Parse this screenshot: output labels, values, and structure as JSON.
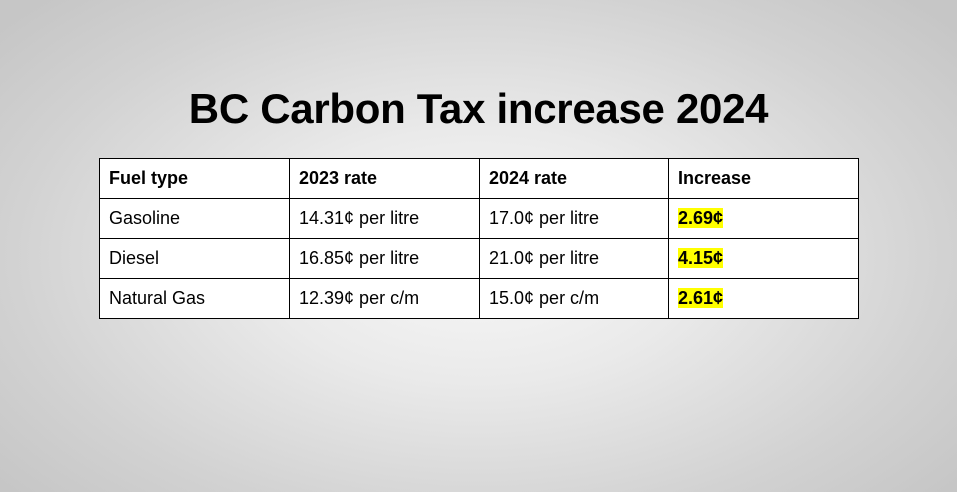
{
  "title": "BC Carbon Tax increase 2024",
  "table": {
    "headers": [
      "Fuel type",
      "2023 rate",
      "2024 rate",
      "Increase"
    ],
    "rows": [
      {
        "fuel": "Gasoline",
        "rate_2023": "14.31¢ per litre",
        "rate_2024": "17.0¢ per litre",
        "increase": "2.69¢"
      },
      {
        "fuel": "Diesel",
        "rate_2023": "16.85¢ per litre",
        "rate_2024": "21.0¢ per litre",
        "increase": "4.15¢"
      },
      {
        "fuel": "Natural Gas",
        "rate_2023": "12.39¢ per c/m",
        "rate_2024": "15.0¢ per c/m",
        "increase": "2.61¢"
      }
    ]
  },
  "colors": {
    "highlight": "#ffff00",
    "text": "#000000",
    "table_background": "#ffffff"
  }
}
